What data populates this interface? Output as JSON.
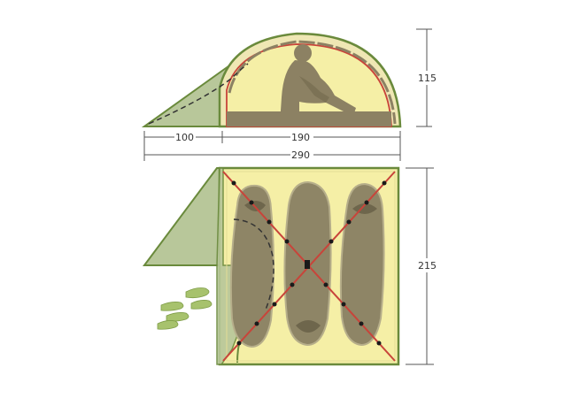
{
  "diagram": {
    "side_view": {
      "height_label": "115",
      "vestibule_label": "100",
      "inner_label": "190",
      "total_label": "290"
    },
    "floor_plan": {
      "depth_label": "215",
      "sleeping_bags": 3
    },
    "colors": {
      "outline": "#6a8a3c",
      "fly_fill": "#b8c79a",
      "inner_fill": "#f5efa6",
      "floor_fill": "#8c8163",
      "pole": "#c8443a",
      "bag_fill": "#8e8566",
      "bag_edge": "#b6ae8a",
      "footprint": "#a7c26d",
      "dimension_line": "#555555"
    }
  }
}
